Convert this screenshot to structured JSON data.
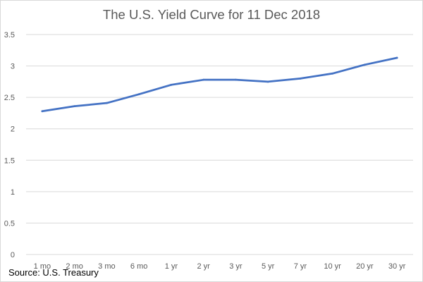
{
  "chart_data": {
    "type": "line",
    "title": "The U.S. Yield Curve for 11 Dec 2018",
    "xlabel": "",
    "ylabel": "",
    "categories": [
      "1 mo",
      "2 mo",
      "3 mo",
      "6 mo",
      "1 yr",
      "2 yr",
      "3 yr",
      "5 yr",
      "7 yr",
      "10 yr",
      "20 yr",
      "30 yr"
    ],
    "series": [
      {
        "name": "Yield",
        "values": [
          2.28,
          2.36,
          2.41,
          2.55,
          2.7,
          2.78,
          2.78,
          2.75,
          2.8,
          2.88,
          3.02,
          3.13
        ],
        "color": "#4472c4"
      }
    ],
    "ylim": [
      0,
      3.5
    ],
    "yticks": [
      "0",
      "0.5",
      "1",
      "1.5",
      "2",
      "2.5",
      "3",
      "3.5"
    ],
    "grid": true,
    "gridColor": "#d9d9d9"
  },
  "source": "Source: U.S. Treasury"
}
